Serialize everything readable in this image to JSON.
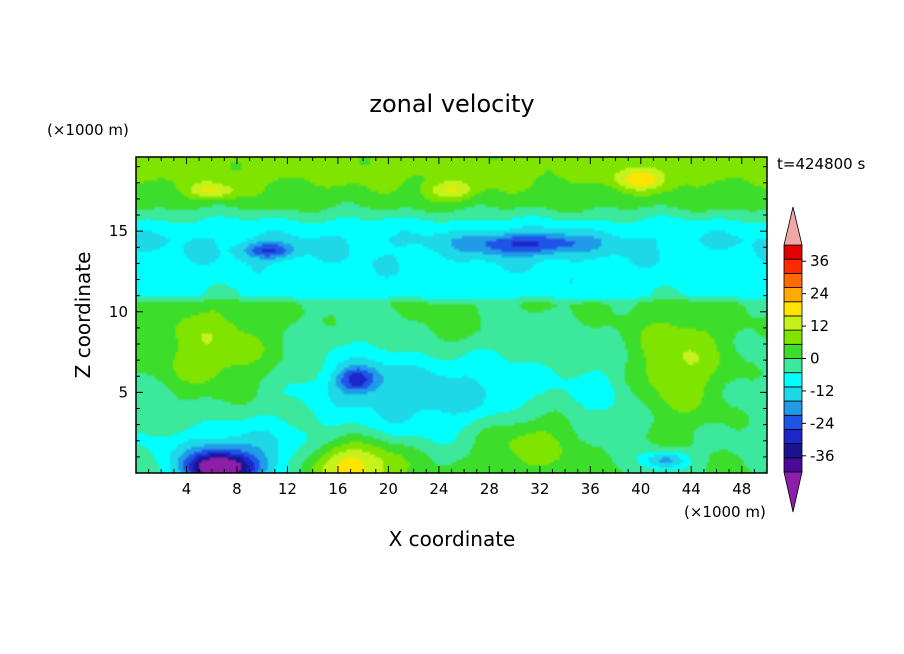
{
  "chart_data": {
    "type": "heatmap",
    "title": "zonal velocity",
    "xlabel": "X coordinate",
    "ylabel": "Z coordinate",
    "x_unit": "(×1000 m)",
    "y_unit": "(×1000 m)",
    "time_label": "t=424800 s",
    "xlim": [
      0,
      50
    ],
    "ylim": [
      0,
      19.6
    ],
    "xticks": [
      4,
      8,
      12,
      16,
      20,
      24,
      28,
      32,
      36,
      40,
      44,
      48
    ],
    "yticks": [
      5,
      10,
      15
    ],
    "grid": false,
    "colorbar": {
      "levels": [
        -42,
        -36,
        -30,
        -24,
        -18,
        -12,
        -6,
        0,
        6,
        12,
        18,
        24,
        30,
        36,
        42
      ],
      "colors": [
        "#4b0a9c",
        "#1a1490",
        "#1d26c8",
        "#1f55e6",
        "#1f9be8",
        "#1ed8e8",
        "#00ffff",
        "#3ce89b",
        "#3ddd2c",
        "#7fe400",
        "#c6f21c",
        "#ffe400",
        "#ffaa00",
        "#ff6a00",
        "#ff2a00",
        "#e20000"
      ],
      "under_color": "#8c1ea8",
      "over_color": "#f2a7a7",
      "tick_labels": [
        "36",
        "24",
        "12",
        "0",
        "-12",
        "-24",
        "-36"
      ],
      "tick_values": [
        36,
        24,
        12,
        0,
        -12,
        -24,
        -36
      ]
    },
    "field": {
      "base_by_height": [
        [
          0,
          0
        ],
        [
          2,
          -2
        ],
        [
          5,
          -4
        ],
        [
          9,
          -1
        ],
        [
          10.5,
          0
        ],
        [
          11,
          -9
        ],
        [
          13,
          -11
        ],
        [
          14.5,
          -12
        ],
        [
          15.5,
          -8
        ],
        [
          16.5,
          1
        ],
        [
          18.5,
          8
        ],
        [
          19.6,
          8
        ]
      ],
      "features": [
        {
          "x": 6.5,
          "z": 0.3,
          "value": -38,
          "rx": 2.5,
          "rz": 0.9
        },
        {
          "x": 8,
          "z": 0.8,
          "value": -20,
          "rx": 6,
          "rz": 2
        },
        {
          "x": 17,
          "z": 0.5,
          "value": 24,
          "rx": 4,
          "rz": 1.5
        },
        {
          "x": 31,
          "z": 2,
          "value": 12,
          "rx": 5,
          "rz": 2
        },
        {
          "x": 42,
          "z": 0.8,
          "value": -20,
          "rx": 1.8,
          "rz": 0.6
        },
        {
          "x": 17.5,
          "z": 5.8,
          "value": -22,
          "rx": 1.6,
          "rz": 0.8
        },
        {
          "x": 19,
          "z": 5.5,
          "value": -9,
          "rx": 6,
          "rz": 3
        },
        {
          "x": 26,
          "z": 4.5,
          "value": -9,
          "rx": 6,
          "rz": 3
        },
        {
          "x": 6,
          "z": 7.5,
          "value": 13,
          "rx": 5,
          "rz": 3
        },
        {
          "x": 43,
          "z": 6.5,
          "value": 15,
          "rx": 4,
          "rz": 3.5
        },
        {
          "x": 37,
          "z": 5,
          "value": -5,
          "rx": 3,
          "rz": 3
        },
        {
          "x": 24,
          "z": 8.5,
          "value": 6,
          "rx": 3,
          "rz": 1.5
        },
        {
          "x": 31,
          "z": 14.2,
          "value": -20,
          "rx": 5,
          "rz": 0.7
        },
        {
          "x": 10.5,
          "z": 13.8,
          "value": -20,
          "rx": 2,
          "rz": 0.5
        },
        {
          "x": 40,
          "z": 18.2,
          "value": 14,
          "rx": 2,
          "rz": 0.7
        },
        {
          "x": 25,
          "z": 17.5,
          "value": 14,
          "rx": 2,
          "rz": 0.6
        },
        {
          "x": 6,
          "z": 17.5,
          "value": 14,
          "rx": 2,
          "rz": 0.5
        }
      ]
    }
  }
}
